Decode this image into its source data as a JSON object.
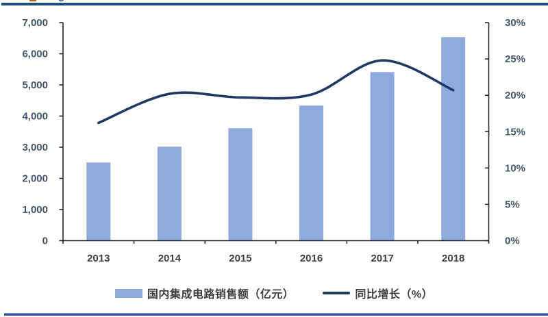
{
  "header": {
    "clipped_title_descender": "g",
    "accent_fragment_color": "#C55A11",
    "top_rule_color": "#1F4E79",
    "bottom_rule_color": "#2F5597"
  },
  "chart_data": {
    "type": "bar+line",
    "title": "",
    "categories": [
      "2013",
      "2014",
      "2015",
      "2016",
      "2017",
      "2018"
    ],
    "series": [
      {
        "name": "国内集成电路销售额（亿元）",
        "type": "bar",
        "axis": "left",
        "color": "#8EA9DB",
        "values": [
          2508.5,
          3015.4,
          3609.8,
          4335.5,
          5411.3,
          6532.0
        ]
      },
      {
        "name": "同比增长（%）",
        "type": "line",
        "axis": "right",
        "color": "#1F3864",
        "values": [
          16.2,
          20.2,
          19.7,
          20.1,
          24.8,
          20.7
        ]
      }
    ],
    "left_axis": {
      "min": 0,
      "max": 7000,
      "step": 1000,
      "tick_labels": [
        "0",
        "1,000",
        "2,000",
        "3,000",
        "4,000",
        "5,000",
        "6,000",
        "7,000"
      ]
    },
    "right_axis": {
      "min": 0,
      "max": 30,
      "step": 5,
      "tick_labels": [
        "0%",
        "5%",
        "10%",
        "15%",
        "20%",
        "25%",
        "30%"
      ]
    },
    "grid": false,
    "plot_background": "#FFFFFF",
    "axis_color": "#262626",
    "value_label_color": "#44546A",
    "category_label_color": "#3F3F3F",
    "legend_position": "bottom",
    "line_smoothing": true
  }
}
